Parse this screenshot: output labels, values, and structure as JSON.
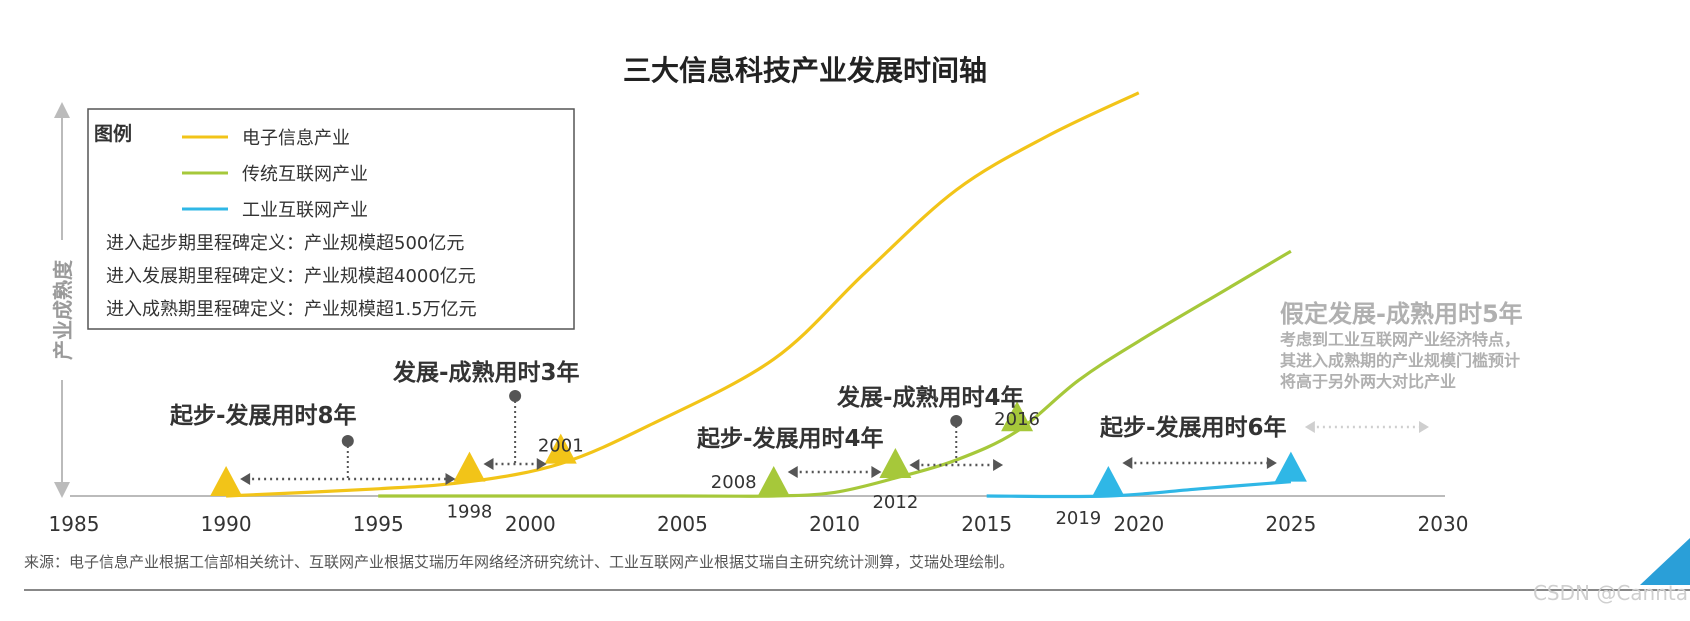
{
  "chart_data": {
    "type": "line",
    "title": "三大信息科技产业发展时间轴",
    "ylabel": "产业成熟度",
    "xlim": [
      1985,
      2030
    ],
    "x_ticks": [
      "1985",
      "1990",
      "1995",
      "2000",
      "2005",
      "2010",
      "2015",
      "2020",
      "2025",
      "2030"
    ],
    "grid": false,
    "legend": {
      "title": "图例",
      "position": "top-left",
      "entries": [
        {
          "name": "电子信息产业",
          "color": "#f2c418"
        },
        {
          "name": "传统互联网产业",
          "color": "#a6c83a"
        },
        {
          "name": "工业互联网产业",
          "color": "#2fb7e6"
        }
      ],
      "definitions": [
        "进入起步期里程碑定义：产业规模超500亿元",
        "进入发展期里程碑定义：产业规模超4000亿元",
        "进入成熟期里程碑定义：产业规模超1.5万亿元"
      ]
    },
    "series": [
      {
        "name": "电子信息产业",
        "color": "#f2c418",
        "points": [
          [
            1990,
            0.0
          ],
          [
            1995,
            0.02
          ],
          [
            1998,
            0.04
          ],
          [
            2001,
            0.09
          ],
          [
            2004,
            0.2
          ],
          [
            2008,
            0.38
          ],
          [
            2011,
            0.62
          ],
          [
            2014,
            0.85
          ],
          [
            2017,
            1.0
          ],
          [
            2020,
            1.12
          ]
        ]
      },
      {
        "name": "传统互联网产业",
        "color": "#a6c83a",
        "points": [
          [
            1995,
            0.0
          ],
          [
            2005,
            0.0
          ],
          [
            2008,
            0.0
          ],
          [
            2010,
            0.01
          ],
          [
            2012,
            0.05
          ],
          [
            2014,
            0.1
          ],
          [
            2016,
            0.18
          ],
          [
            2018,
            0.32
          ],
          [
            2020,
            0.43
          ],
          [
            2023,
            0.58
          ],
          [
            2025,
            0.68
          ]
        ]
      },
      {
        "name": "工业互联网产业",
        "color": "#2fb7e6",
        "points": [
          [
            2015,
            0.0
          ],
          [
            2019,
            0.0
          ],
          [
            2022,
            0.02
          ],
          [
            2025,
            0.04
          ]
        ]
      }
    ],
    "milestones": [
      {
        "series": "电子信息产业",
        "x": 1990,
        "label": ""
      },
      {
        "series": "电子信息产业",
        "x": 1998,
        "label": "1998"
      },
      {
        "series": "电子信息产业",
        "x": 2001,
        "label": "2001"
      },
      {
        "series": "传统互联网产业",
        "x": 2008,
        "label": "2008"
      },
      {
        "series": "传统互联网产业",
        "x": 2012,
        "label": "2012"
      },
      {
        "series": "传统互联网产业",
        "x": 2016,
        "label": "2016"
      },
      {
        "series": "工业互联网产业",
        "x": 2019,
        "label": "2019"
      },
      {
        "series": "工业互联网产业",
        "x": 2025,
        "label": ""
      }
    ],
    "annotations": [
      {
        "text": "起步-发展用时8年",
        "from": 1990,
        "to": 1998
      },
      {
        "text": "发展-成熟用时3年",
        "from": 1998,
        "to": 2001
      },
      {
        "text": "起步-发展用时4年",
        "from": 2008,
        "to": 2012
      },
      {
        "text": "发展-成熟用时4年",
        "from": 2012,
        "to": 2016
      },
      {
        "text": "起步-发展用时6年",
        "from": 2019,
        "to": 2025
      },
      {
        "text": "假定发展-成熟用时5年",
        "from": 2025,
        "to": 2030,
        "style": "assumed"
      }
    ],
    "assumption_note": [
      "考虑到工业互联网产业经济特点，",
      "其进入成熟期的产业规模门槛预计",
      "将高于另外两大对比产业"
    ],
    "source": "来源：电子信息产业根据工信部相关统计、互联网产业根据艾瑞历年网络经济研究统计、工业互联网产业根据艾瑞自主研究统计测算，艾瑞处理绘制。"
  },
  "watermark": "CSDN @Cannta"
}
